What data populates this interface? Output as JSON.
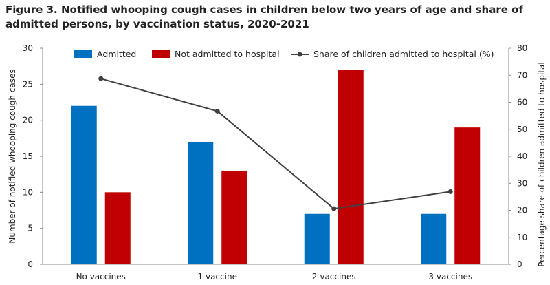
{
  "title": "Figure 3. Notified whooping cough cases in children below two years of age and share of admitted persons, by vaccination status, 2020-2021",
  "chart_data": {
    "type": "bar",
    "categories": [
      "No vaccines",
      "1 vaccine",
      "2 vaccines",
      "3 vaccines"
    ],
    "series": [
      {
        "name": "Admitted",
        "type": "bar",
        "axis": "left",
        "color": "#0070c0",
        "values": [
          22,
          17,
          7,
          7
        ]
      },
      {
        "name": "Not admitted to hospital",
        "type": "bar",
        "axis": "left",
        "color": "#c00000",
        "values": [
          10,
          13,
          27,
          19
        ]
      },
      {
        "name": "Share of children admitted to hospital (%)",
        "type": "line",
        "axis": "right",
        "color": "#404040",
        "values": [
          68.75,
          56.7,
          20.6,
          26.9
        ]
      }
    ],
    "ylabel": "Number of notified whooping cough cases",
    "y2label": "Percentage share of children admitted to hospital",
    "ylim": [
      0,
      30
    ],
    "y2lim": [
      0,
      80
    ],
    "yticks": [
      "0",
      "5",
      "10",
      "15",
      "20",
      "25",
      "30"
    ],
    "y2ticks": [
      "0",
      "10",
      "20",
      "30",
      "40",
      "50",
      "60",
      "70",
      "80"
    ],
    "legend_position": "top",
    "grid": false
  }
}
